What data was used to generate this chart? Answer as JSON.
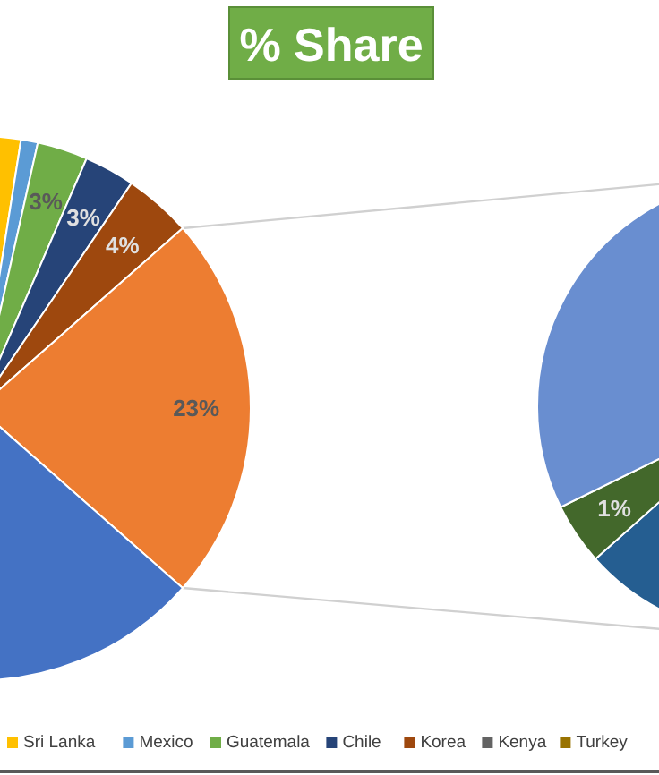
{
  "chart_data": [
    {
      "type": "pie",
      "title": "% Share",
      "categories": [
        "Sri Lanka",
        "Mexico",
        "Guatemala",
        "Chile",
        "Korea",
        null,
        null,
        "Kenya",
        "Turkey"
      ],
      "values": [
        2,
        1,
        3,
        3,
        4,
        23,
        64,
        null,
        null
      ],
      "colors": [
        "#ffc000",
        "#5b9bd5",
        "#70ad47",
        "#264478",
        "#9e480e",
        "#ed7d31",
        "#4472c4",
        "#636363",
        "#997300"
      ],
      "value_labels": [
        null,
        null,
        "3%",
        "3%",
        "4%",
        "23%",
        null,
        null,
        null
      ],
      "legend": "bottom"
    },
    {
      "type": "pie",
      "categories": [
        null,
        null,
        null
      ],
      "values": [
        8,
        1,
        14
      ],
      "colors": [
        "#255e91",
        "#43682b",
        "#698ed0"
      ],
      "value_labels": [
        null,
        "1%",
        null
      ]
    }
  ]
}
